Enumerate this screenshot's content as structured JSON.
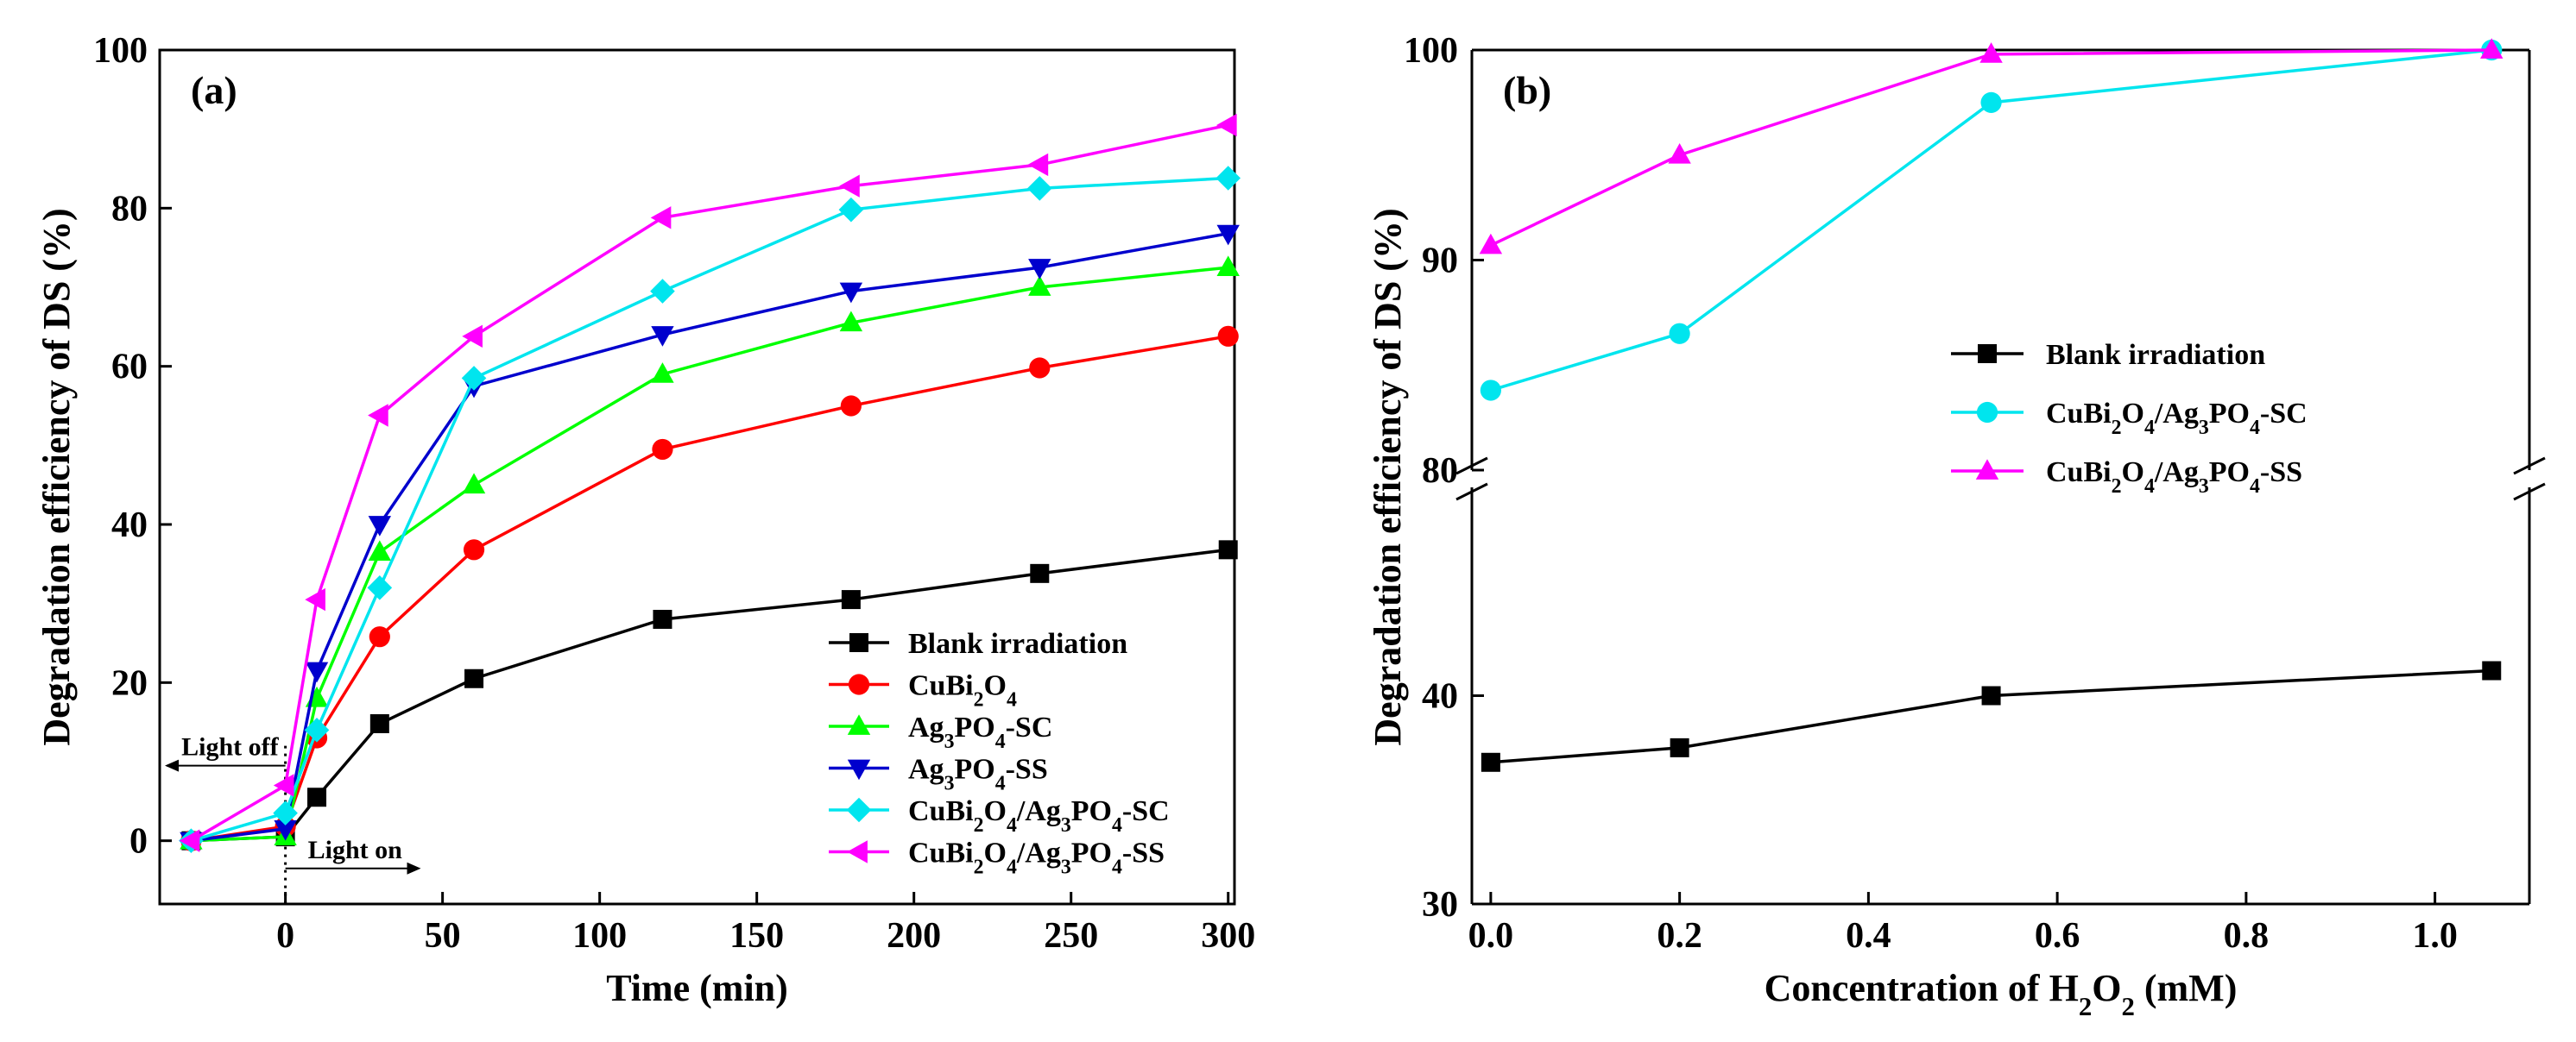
{
  "chart_data": [
    {
      "type": "line",
      "panel_label": "(a)",
      "xlabel": "Time (min)",
      "ylabel": "Degradation efficiency of DS (%)",
      "xlim": [
        -40,
        302
      ],
      "ylim": [
        -8,
        100
      ],
      "xticks": [
        0,
        50,
        100,
        150,
        200,
        250,
        300
      ],
      "yticks": [
        0,
        20,
        40,
        60,
        80,
        100
      ],
      "annotations": {
        "light_off": "Light off",
        "light_on": "Light on"
      },
      "legend_position": "bottom-right",
      "x": [
        -30,
        0,
        10,
        30,
        60,
        120,
        180,
        240,
        300
      ],
      "series": [
        {
          "name": "Blank irradiation",
          "name_main": "Blank irradiation",
          "name_sub": "",
          "color": "#000000",
          "marker": "square",
          "values": [
            0,
            0.5,
            5.5,
            14.8,
            20.5,
            28,
            30.5,
            33.8,
            36.8
          ]
        },
        {
          "name": "CuBi2O4",
          "name_main": "CuBi2O4",
          "name_sub": "",
          "color": "#ff0000",
          "marker": "circle",
          "values": [
            0,
            1.8,
            13,
            25.8,
            36.8,
            49.5,
            55,
            59.8,
            63.8
          ]
        },
        {
          "name": "Ag3PO4-SC",
          "name_main": "Ag3PO4",
          "name_sub": "-SC",
          "color": "#00ff00",
          "marker": "triangle-up",
          "values": [
            0,
            0.5,
            18,
            36.5,
            45,
            59,
            65.5,
            70,
            72.5
          ]
        },
        {
          "name": "Ag3PO4-SS",
          "name_main": "Ag3PO4",
          "name_sub": "-SS",
          "color": "#0000cd",
          "marker": "triangle-down",
          "values": [
            0,
            1.5,
            21.5,
            40,
            57.5,
            64,
            69.5,
            72.5,
            76.8
          ]
        },
        {
          "name": "CuBi2O4/Ag3PO4-SC",
          "name_main": "CuBi2O4/Ag3PO4",
          "name_sub": "-SC",
          "color": "#00e5ee",
          "marker": "diamond",
          "values": [
            0,
            3.5,
            14,
            32,
            58.5,
            69.5,
            79.8,
            82.5,
            83.8
          ]
        },
        {
          "name": "CuBi2O4/Ag3PO4-SS",
          "name_main": "CuBi2O4/Ag3PO4",
          "name_sub": "-SS",
          "color": "#ff00ff",
          "marker": "triangle-left",
          "values": [
            0,
            7,
            30.5,
            53.8,
            63.8,
            78.8,
            82.8,
            85.5,
            90.5
          ]
        }
      ]
    },
    {
      "type": "line",
      "panel_label": "(b)",
      "xlabel": "Concentration of H2O2 (mM)",
      "ylabel": "Degradation efficiency of DS (%)",
      "xlim": [
        -0.02,
        1.1
      ],
      "ylim": [
        30,
        100
      ],
      "axis_break": [
        50,
        80
      ],
      "xticks": [
        0.0,
        0.2,
        0.4,
        0.6,
        0.8,
        1.0
      ],
      "yticks": [
        30,
        40,
        80,
        90,
        100
      ],
      "legend_position": "center-right",
      "x": [
        0,
        0.2,
        0.53,
        1.06
      ],
      "series": [
        {
          "name": "Blank irradiation",
          "name_main": "Blank irradiation",
          "name_sub": "",
          "color": "#000000",
          "marker": "square",
          "values": [
            36.8,
            37.5,
            40,
            41.2
          ]
        },
        {
          "name": "CuBi2O4/Ag3PO4-SC",
          "name_main": "CuBi2O4/Ag3PO4",
          "name_sub": "-SC",
          "color": "#00e5ee",
          "marker": "circle",
          "values": [
            83.8,
            86.5,
            97.5,
            100
          ]
        },
        {
          "name": "CuBi2O4/Ag3PO4-SS",
          "name_main": "CuBi2O4/Ag3PO4",
          "name_sub": "-SS",
          "color": "#ff00ff",
          "marker": "triangle-up",
          "values": [
            90.7,
            95,
            99.8,
            100
          ]
        }
      ]
    }
  ]
}
